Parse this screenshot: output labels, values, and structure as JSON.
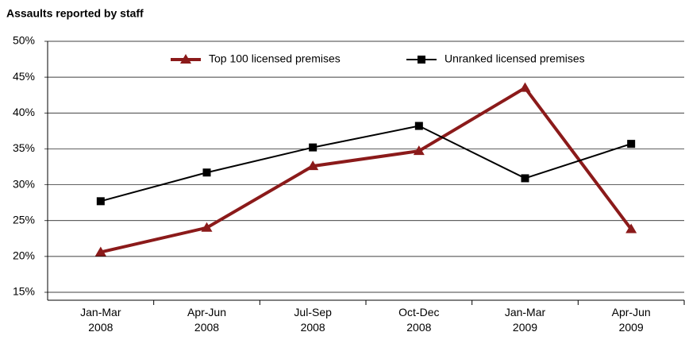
{
  "chart_data": {
    "type": "line",
    "title": "Assaults reported by staff",
    "categories": [
      "Jan-Mar\n2008",
      "Apr-Jun\n2008",
      "Jul-Sep\n2008",
      "Oct-Dec\n2008",
      "Jan-Mar\n2009",
      "Apr-Jun\n2009"
    ],
    "series": [
      {
        "name": "Top 100 licensed premises",
        "color": "#8b1a1a",
        "values": [
          20.6,
          24.0,
          32.6,
          34.7,
          43.5,
          23.8
        ]
      },
      {
        "name": "Unranked licensed premises",
        "color": "#000000",
        "values": [
          27.7,
          31.7,
          35.2,
          38.2,
          30.9,
          35.7
        ]
      }
    ],
    "ylim": [
      15,
      50
    ],
    "yticks": [
      {
        "value": 15,
        "label": "15%"
      },
      {
        "value": 20,
        "label": "20%"
      },
      {
        "value": 25,
        "label": "25%"
      },
      {
        "value": 30,
        "label": "30%"
      },
      {
        "value": 35,
        "label": "35%"
      },
      {
        "value": 40,
        "label": "40%"
      },
      {
        "value": 45,
        "label": "45%"
      },
      {
        "value": 50,
        "label": "50%"
      }
    ],
    "grid": true
  }
}
